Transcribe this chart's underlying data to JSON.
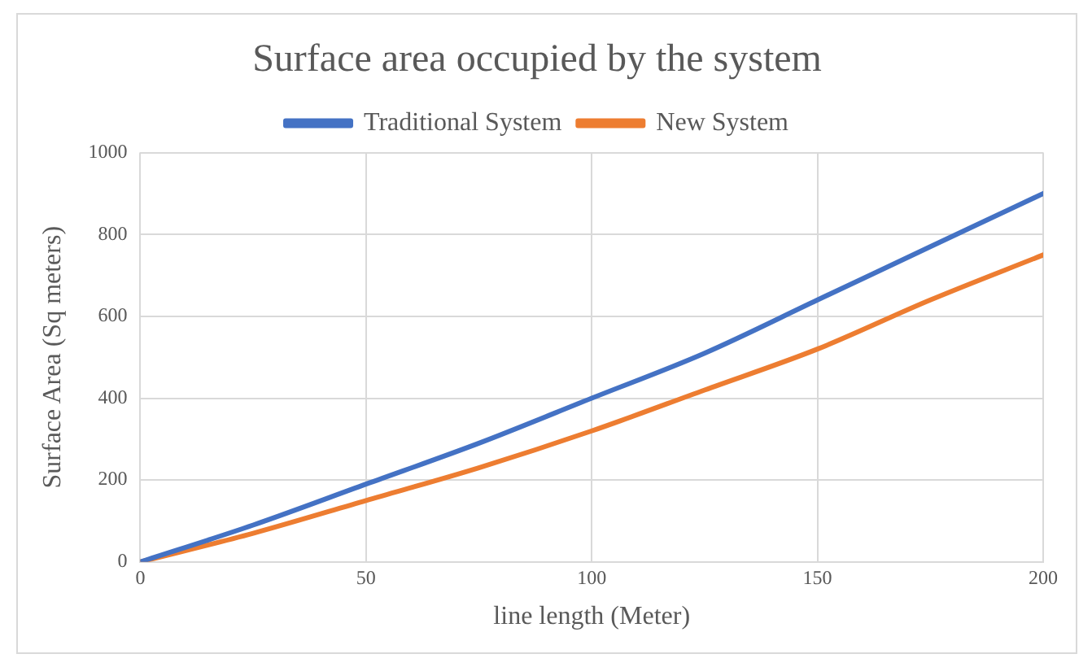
{
  "chart_data": {
    "type": "line",
    "title": "Surface area occupied by the system",
    "xlabel": "line length (Meter)",
    "ylabel": "Surface Area (Sq meters)",
    "x": [
      0,
      25,
      50,
      75,
      100,
      125,
      150,
      175,
      200
    ],
    "series": [
      {
        "name": "Traditional System",
        "color": "#4472c4",
        "values": [
          0,
          90,
          190,
          290,
          400,
          510,
          640,
          770,
          900
        ]
      },
      {
        "name": "New System",
        "color": "#ed7d31",
        "values": [
          0,
          70,
          150,
          230,
          320,
          420,
          520,
          640,
          750
        ]
      }
    ],
    "xlim": [
      0,
      200
    ],
    "xticks": [
      0,
      50,
      100,
      150,
      200
    ],
    "ylim": [
      0,
      1000
    ],
    "yticks": [
      0,
      200,
      400,
      600,
      800,
      1000
    ],
    "grid": true,
    "legend": "top",
    "marker": "none",
    "line_style": "solid"
  }
}
